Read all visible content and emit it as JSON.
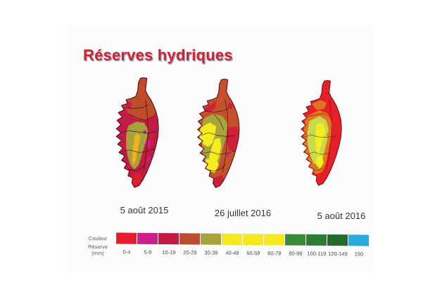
{
  "title": "Réserves hydriques",
  "title_color": "#d02330",
  "maps": [
    {
      "label": "5 août 2015"
    },
    {
      "label": "26 juillet 2016"
    },
    {
      "label": "5 août 2016"
    }
  ],
  "legend": {
    "row_color_label": "Couleur",
    "row_value_label": "Réserve (mm)",
    "cells": [
      {
        "range": "0-4",
        "color": "#e81c2e"
      },
      {
        "range": "5-9",
        "color": "#cc1f8c"
      },
      {
        "range": "10-19",
        "color": "#c21a45"
      },
      {
        "range": "20-29",
        "color": "#bf4a2e"
      },
      {
        "range": "30-39",
        "color": "#a8a33b"
      },
      {
        "range": "40-49",
        "color": "#f5e91d"
      },
      {
        "range": "50-59",
        "color": "#f5e91d"
      },
      {
        "range": "60-79",
        "color": "#f5e91d"
      },
      {
        "range": "80-99",
        "color": "#3a8a3c"
      },
      {
        "range": "100-119",
        "color": "#2d7d33"
      },
      {
        "range": "120-149",
        "color": "#226b2d"
      },
      {
        "range": "150",
        "color": "#29a9e2"
      }
    ]
  }
}
